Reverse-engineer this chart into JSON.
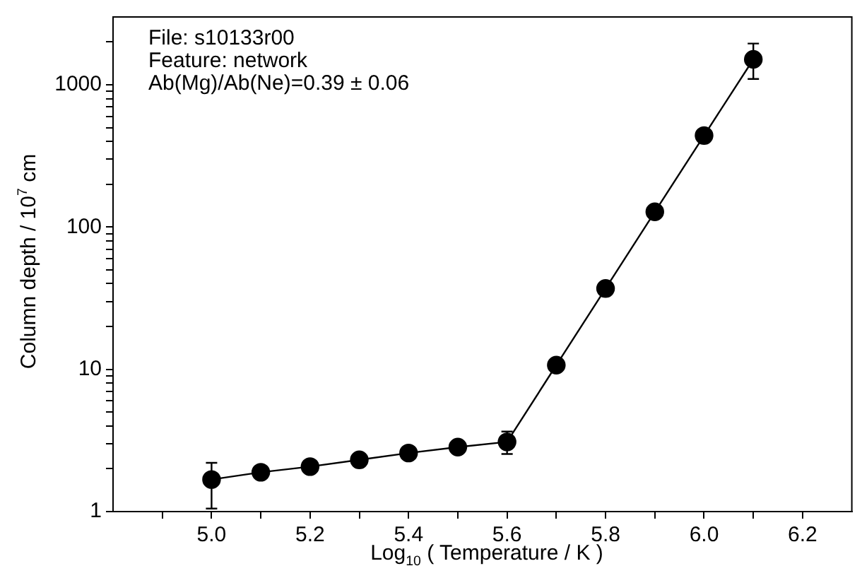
{
  "chart_data": {
    "type": "line",
    "xlabel": "Log$_{10}$ ( Temperature / K )",
    "ylabel": "Column depth / 10$^{7}$ cm",
    "annotations": [
      "File: s10133r00",
      "Feature: network",
      "Ab(Mg)/Ab(Ne)=0.39 ± 0.06"
    ],
    "x": [
      5.0,
      5.1,
      5.2,
      5.3,
      5.4,
      5.5,
      5.6,
      5.7,
      5.8,
      5.9,
      6.0,
      6.1
    ],
    "series": [
      {
        "color": "#000000",
        "values": [
          1.68,
          1.89,
          2.07,
          2.31,
          2.58,
          2.84,
          3.09,
          10.7,
          37,
          128,
          440,
          1510
        ],
        "errors": [
          [
            1.05,
            2.2
          ],
          null,
          null,
          null,
          null,
          null,
          [
            2.54,
            3.65
          ],
          null,
          null,
          null,
          null,
          [
            1100,
            1950
          ]
        ]
      }
    ],
    "xlim": [
      4.8,
      6.3
    ],
    "xticks": [
      {
        "value": 4.9,
        "label": null
      },
      {
        "value": 5.0,
        "label": "5.0"
      },
      {
        "value": 5.1,
        "label": null
      },
      {
        "value": 5.2,
        "label": "5.2"
      },
      {
        "value": 5.3,
        "label": null
      },
      {
        "value": 5.4,
        "label": "5.4"
      },
      {
        "value": 5.5,
        "label": null
      },
      {
        "value": 5.6,
        "label": "5.6"
      },
      {
        "value": 5.7,
        "label": null
      },
      {
        "value": 5.8,
        "label": "5.8"
      },
      {
        "value": 5.9,
        "label": null
      },
      {
        "value": 6.0,
        "label": "6.0"
      },
      {
        "value": 6.1,
        "label": null
      },
      {
        "value": 6.2,
        "label": "6.2"
      }
    ],
    "ylim": [
      1,
      3000
    ],
    "log": "y",
    "yticks": [
      1,
      {
        "value": 2,
        "label": null
      },
      {
        "value": 3,
        "label": null
      },
      {
        "value": 4,
        "label": null
      },
      {
        "value": 5,
        "label": null
      },
      {
        "value": 6,
        "label": null
      },
      {
        "value": 7,
        "label": null
      },
      {
        "value": 8,
        "label": null
      },
      {
        "value": 9,
        "label": null
      },
      10,
      {
        "value": 20,
        "label": null
      },
      {
        "value": 30,
        "label": null
      },
      {
        "value": 40,
        "label": null
      },
      {
        "value": 50,
        "label": null
      },
      {
        "value": 60,
        "label": null
      },
      {
        "value": 70,
        "label": null
      },
      {
        "value": 80,
        "label": null
      },
      {
        "value": 90,
        "label": null
      },
      100,
      {
        "value": 200,
        "label": null
      },
      {
        "value": 300,
        "label": null
      },
      {
        "value": 400,
        "label": null
      },
      {
        "value": 500,
        "label": null
      },
      {
        "value": 600,
        "label": null
      },
      {
        "value": 700,
        "label": null
      },
      {
        "value": 800,
        "label": null
      },
      {
        "value": 900,
        "label": null
      },
      1000,
      {
        "value": 2000,
        "label": null
      }
    ],
    "grid": false,
    "legend": false,
    "marker": "circle",
    "line_style": "solid"
  }
}
